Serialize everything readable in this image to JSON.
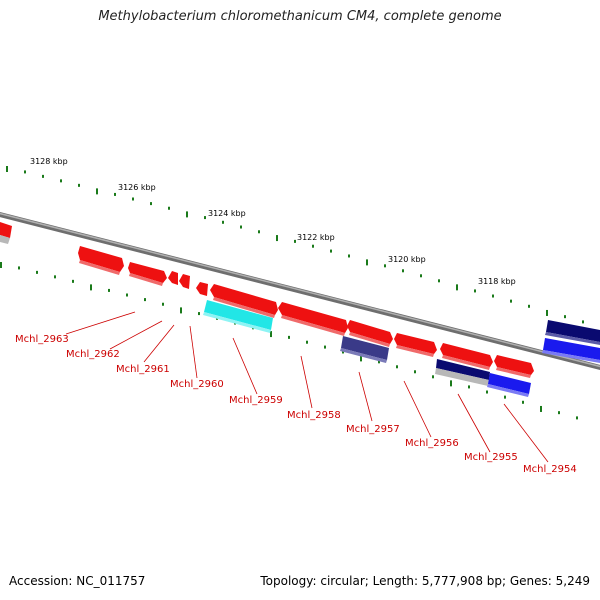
{
  "title": "Methylobacterium chloromethanicum CM4, complete genome",
  "footer": {
    "accession": "Accession: NC_011757",
    "stats": "Topology: circular; Length: 5,777,908 bp; Genes: 5,249"
  },
  "colors": {
    "backbone": "#8a8a8a",
    "ticks": "#1a7a1a",
    "gene_red": "#ee1111",
    "gene_cyan": "#22e6e6",
    "gene_purple": "#3a3a88",
    "gene_navy": "#0a0a70",
    "gene_blue": "#1a1aee",
    "gene_grey": "#b8b8b8",
    "label": "#cc0000",
    "scale_text": "#000000"
  },
  "scale_labels": [
    "3128 kbp",
    "3126 kbp",
    "3124 kbp",
    "3122 kbp",
    "3120 kbp",
    "3118 kbp"
  ],
  "gene_labels": [
    "Mchl_2963",
    "Mchl_2962",
    "Mchl_2961",
    "Mchl_2960",
    "Mchl_2959",
    "Mchl_2958",
    "Mchl_2957",
    "Mchl_2956",
    "Mchl_2955",
    "Mchl_2954"
  ],
  "genes": [
    {
      "strand": "reverse-outer",
      "color": "gene_red"
    },
    {
      "strand": "reverse-outer",
      "color": "gene_red"
    },
    {
      "strand": "reverse-outer",
      "color": "gene_red"
    },
    {
      "strand": "reverse-outer",
      "color": "gene_red"
    },
    {
      "strand": "reverse-outer",
      "color": "gene_red"
    },
    {
      "strand": "reverse-outer",
      "color": "gene_red"
    },
    {
      "strand": "reverse-outer",
      "color": "gene_red"
    },
    {
      "strand": "reverse-outer",
      "color": "gene_red"
    },
    {
      "strand": "reverse-outer",
      "color": "gene_red"
    },
    {
      "strand": "reverse-outer",
      "color": "gene_red"
    },
    {
      "strand": "forward-inner",
      "color": "gene_cyan"
    },
    {
      "strand": "forward-inner",
      "color": "gene_purple"
    },
    {
      "strand": "forward-inner",
      "color": "gene_navy"
    },
    {
      "strand": "forward-inner",
      "color": "gene_grey"
    },
    {
      "strand": "forward-inner",
      "color": "gene_blue"
    },
    {
      "strand": "forward-outer",
      "color": "gene_navy"
    },
    {
      "strand": "forward-outer",
      "color": "gene_blue"
    }
  ]
}
